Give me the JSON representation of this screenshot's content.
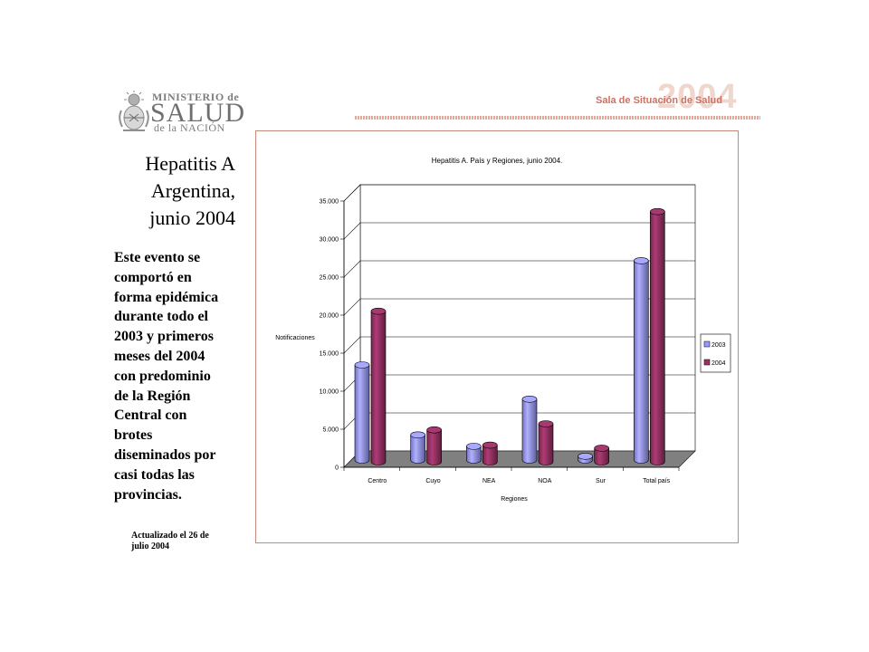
{
  "logo": {
    "line1": "MINISTERIO de",
    "line2": "SALUD",
    "line3": "de la NACIÓN"
  },
  "banner": {
    "text": "Sala de Situación de Salud",
    "year": "2004"
  },
  "title": [
    "Hepatitis A",
    "Argentina,",
    "junio 2004"
  ],
  "description": [
    "Este evento se",
    "comportó en",
    "forma epidémica",
    "durante todo el",
    "2003 y primeros",
    "meses del 2004",
    "con predominio",
    "de la Región",
    "Central con",
    "brotes",
    "diseminados por",
    "casi todas las",
    "provincias."
  ],
  "updated": [
    "Actualizado el 26 de",
    "julio 2004"
  ],
  "colors": {
    "series_2003": "#9999ff",
    "series_2004": "#993366",
    "wall": "#ffffff",
    "floor": "#808080",
    "frame": "#c48a78",
    "banner_text": "#d07060"
  },
  "chart_data": {
    "type": "bar",
    "title": "Hepatitis A. País y Regiones, junio 2004.",
    "xlabel": "Regiones",
    "ylabel": "Notificaciones",
    "categories": [
      "Centro",
      "Cuyo",
      "NEA",
      "NOA",
      "Sur",
      "Total país"
    ],
    "series": [
      {
        "name": "2003",
        "values": [
          12500,
          3300,
          1800,
          8000,
          500,
          26200
        ]
      },
      {
        "name": "2004",
        "values": [
          19800,
          4200,
          2200,
          5000,
          1800,
          32900
        ]
      }
    ],
    "ylim": [
      0,
      35000
    ],
    "yticks": [
      "0",
      "5.000",
      "10.000",
      "15.000",
      "20.000",
      "25.000",
      "30.000",
      "35.000"
    ],
    "grid": true,
    "legend": "right",
    "style": "3d-cylinder"
  }
}
